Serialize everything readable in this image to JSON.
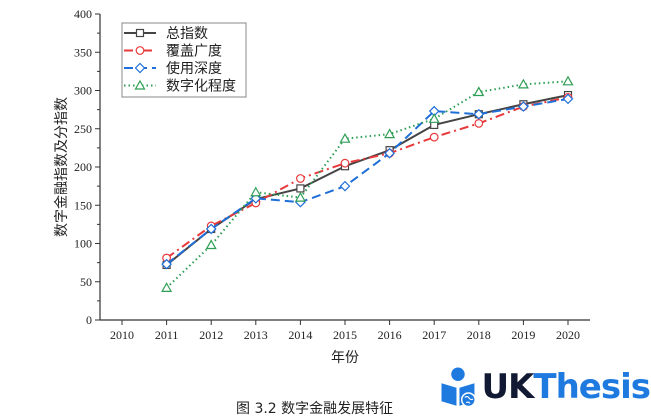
{
  "chart_data": {
    "type": "line",
    "title": "",
    "xlabel": "年份",
    "ylabel": "数字金融指数及分指数",
    "x": [
      2011,
      2012,
      2013,
      2014,
      2015,
      2016,
      2017,
      2018,
      2019,
      2020
    ],
    "x_ticks": [
      "2010",
      "2011",
      "2012",
      "2013",
      "2014",
      "2015",
      "2016",
      "2017",
      "2018",
      "2019",
      "2020"
    ],
    "y_ticks": [
      "0",
      "50",
      "100",
      "150",
      "200",
      "250",
      "300",
      "350",
      "400"
    ],
    "ylim": [
      0,
      400
    ],
    "xlim": [
      2010,
      2020.5
    ],
    "grid": false,
    "legend_position": "upper left",
    "series": [
      {
        "name": "总指数",
        "color": "#444444",
        "marker": "square",
        "dash": "solid",
        "values": [
          72,
          119,
          158,
          172,
          201,
          222,
          255,
          269,
          282,
          294
        ]
      },
      {
        "name": "覆盖广度",
        "color": "#e8393b",
        "marker": "circle",
        "dash": "dashdot",
        "values": [
          81,
          123,
          153,
          185,
          205,
          218,
          239,
          257,
          279,
          291
        ]
      },
      {
        "name": "使用深度",
        "color": "#1f6fd8",
        "marker": "diamond",
        "dash": "dash",
        "values": [
          73,
          119,
          159,
          154,
          175,
          218,
          273,
          269,
          279,
          289
        ]
      },
      {
        "name": "数字化程度",
        "color": "#2e9e55",
        "marker": "triangle",
        "dash": "dot",
        "values": [
          42,
          98,
          167,
          160,
          237,
          243,
          263,
          298,
          308,
          312
        ]
      }
    ]
  },
  "caption": "图 3.2  数字金融发展特征",
  "watermark": {
    "brand_part1": "UK",
    "brand_part2": "Thesis",
    "icon": "reader-globe-icon"
  }
}
